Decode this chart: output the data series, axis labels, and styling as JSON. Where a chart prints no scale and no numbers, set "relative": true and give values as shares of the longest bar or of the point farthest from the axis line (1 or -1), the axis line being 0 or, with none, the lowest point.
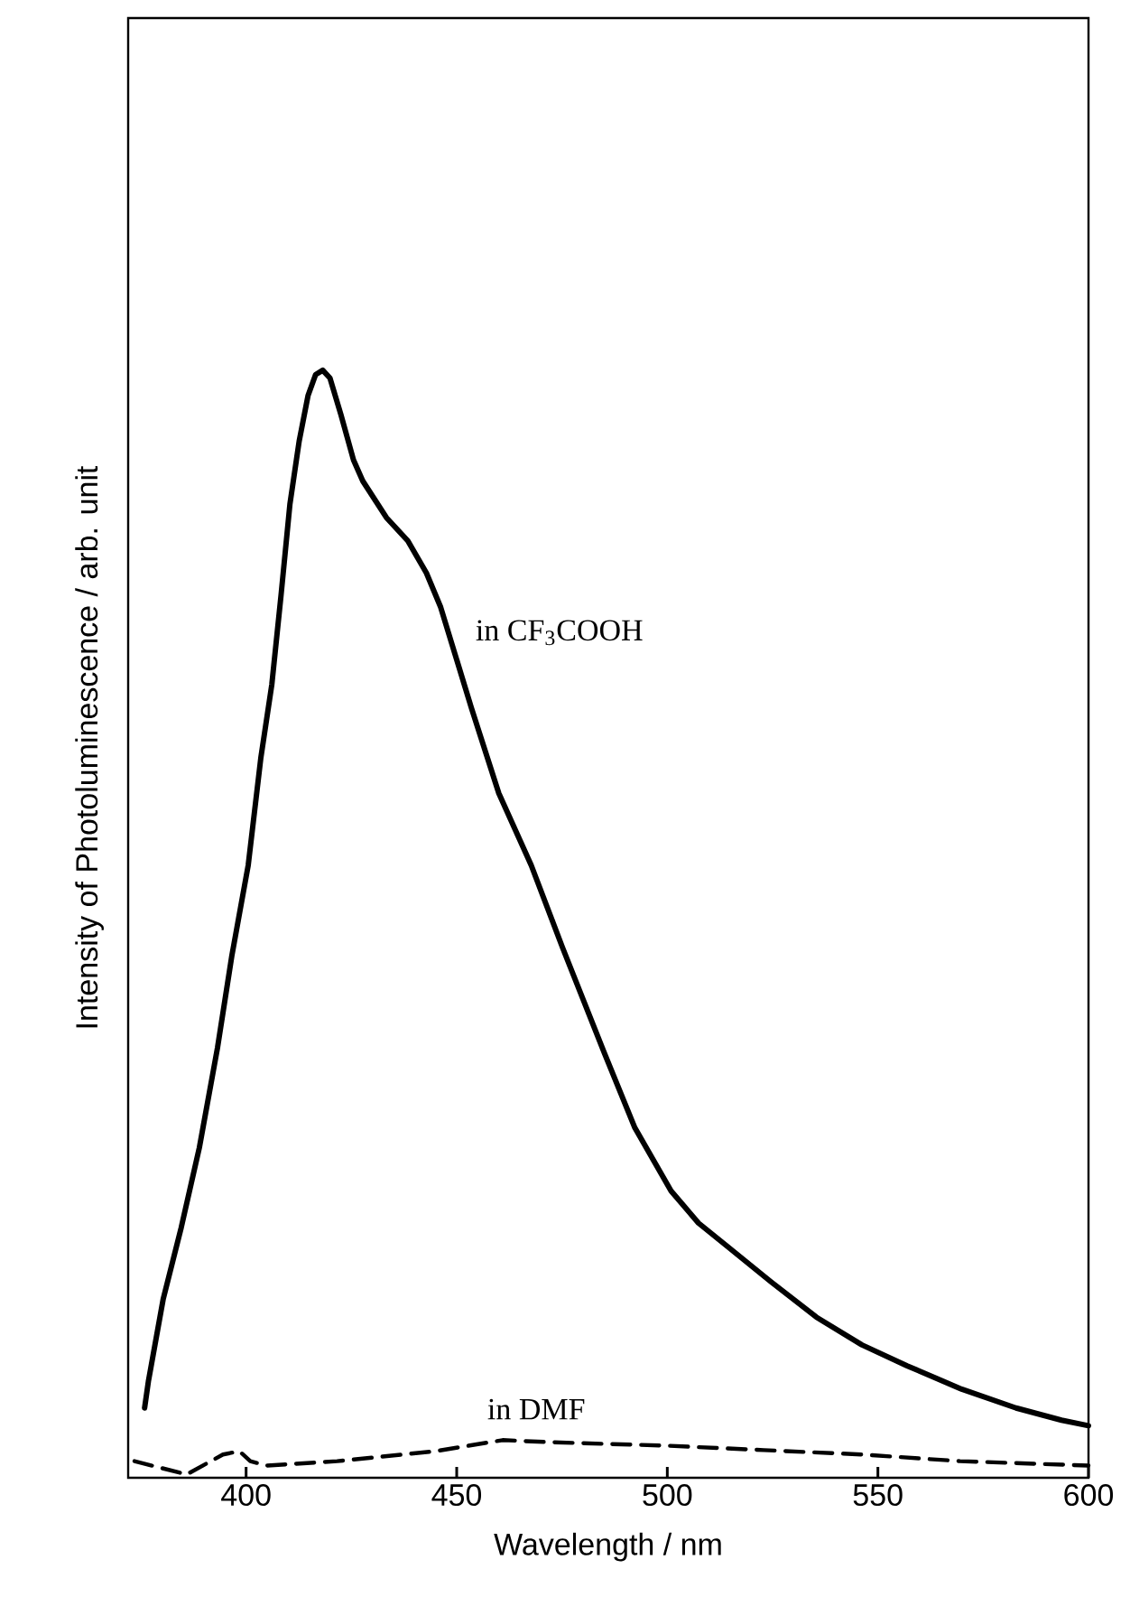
{
  "chart_data": {
    "type": "line",
    "relative": true,
    "xlabel": "Wavelength / nm",
    "ylabel": "Intensity of Photoluminescence / arb. unit",
    "xlim": [
      372,
      600
    ],
    "xticks": [
      400,
      450,
      500,
      550,
      600
    ],
    "series": [
      {
        "name": "in CF$_{3}$COOH",
        "color": "#000000",
        "line_style": "solid",
        "x": [
          375.9,
          376.8,
          380.3,
          384.6,
          388.9,
          393.2,
          396.6,
          400.5,
          403.5,
          406.1,
          408.3,
          410.4,
          412.6,
          414.7,
          416.5,
          418.2,
          419.9,
          422.5,
          425.5,
          427.7,
          433.3,
          438.4,
          442.8,
          446.2,
          453.5,
          460.0,
          467.7,
          475.1,
          485.0,
          492.3,
          500.9,
          507.4,
          513.9,
          524.6,
          535.4,
          546.2,
          557.0,
          569.9,
          582.8,
          593.6,
          600
        ],
        "values": [
          0.063,
          0.087,
          0.161,
          0.226,
          0.298,
          0.388,
          0.471,
          0.553,
          0.65,
          0.716,
          0.797,
          0.879,
          0.936,
          0.977,
          0.996,
          1.0,
          0.993,
          0.96,
          0.919,
          0.9,
          0.867,
          0.846,
          0.817,
          0.786,
          0.695,
          0.618,
          0.553,
          0.479,
          0.384,
          0.316,
          0.259,
          0.23,
          0.21,
          0.177,
          0.145,
          0.12,
          0.101,
          0.08,
          0.063,
          0.052,
          0.047
        ]
      },
      {
        "name": "in DMF",
        "color": "#000000",
        "line_style": "dashed",
        "x": [
          373.5,
          385.9,
          394.5,
          398.4,
          401.0,
          404.8,
          421.6,
          444.9,
          460.9,
          472.9,
          499.7,
          522.9,
          546.2,
          569.5,
          600
        ],
        "values": [
          0.015,
          0.003,
          0.021,
          0.024,
          0.015,
          0.011,
          0.015,
          0.024,
          0.034,
          0.032,
          0.029,
          0.025,
          0.021,
          0.015,
          0.011
        ]
      }
    ]
  }
}
